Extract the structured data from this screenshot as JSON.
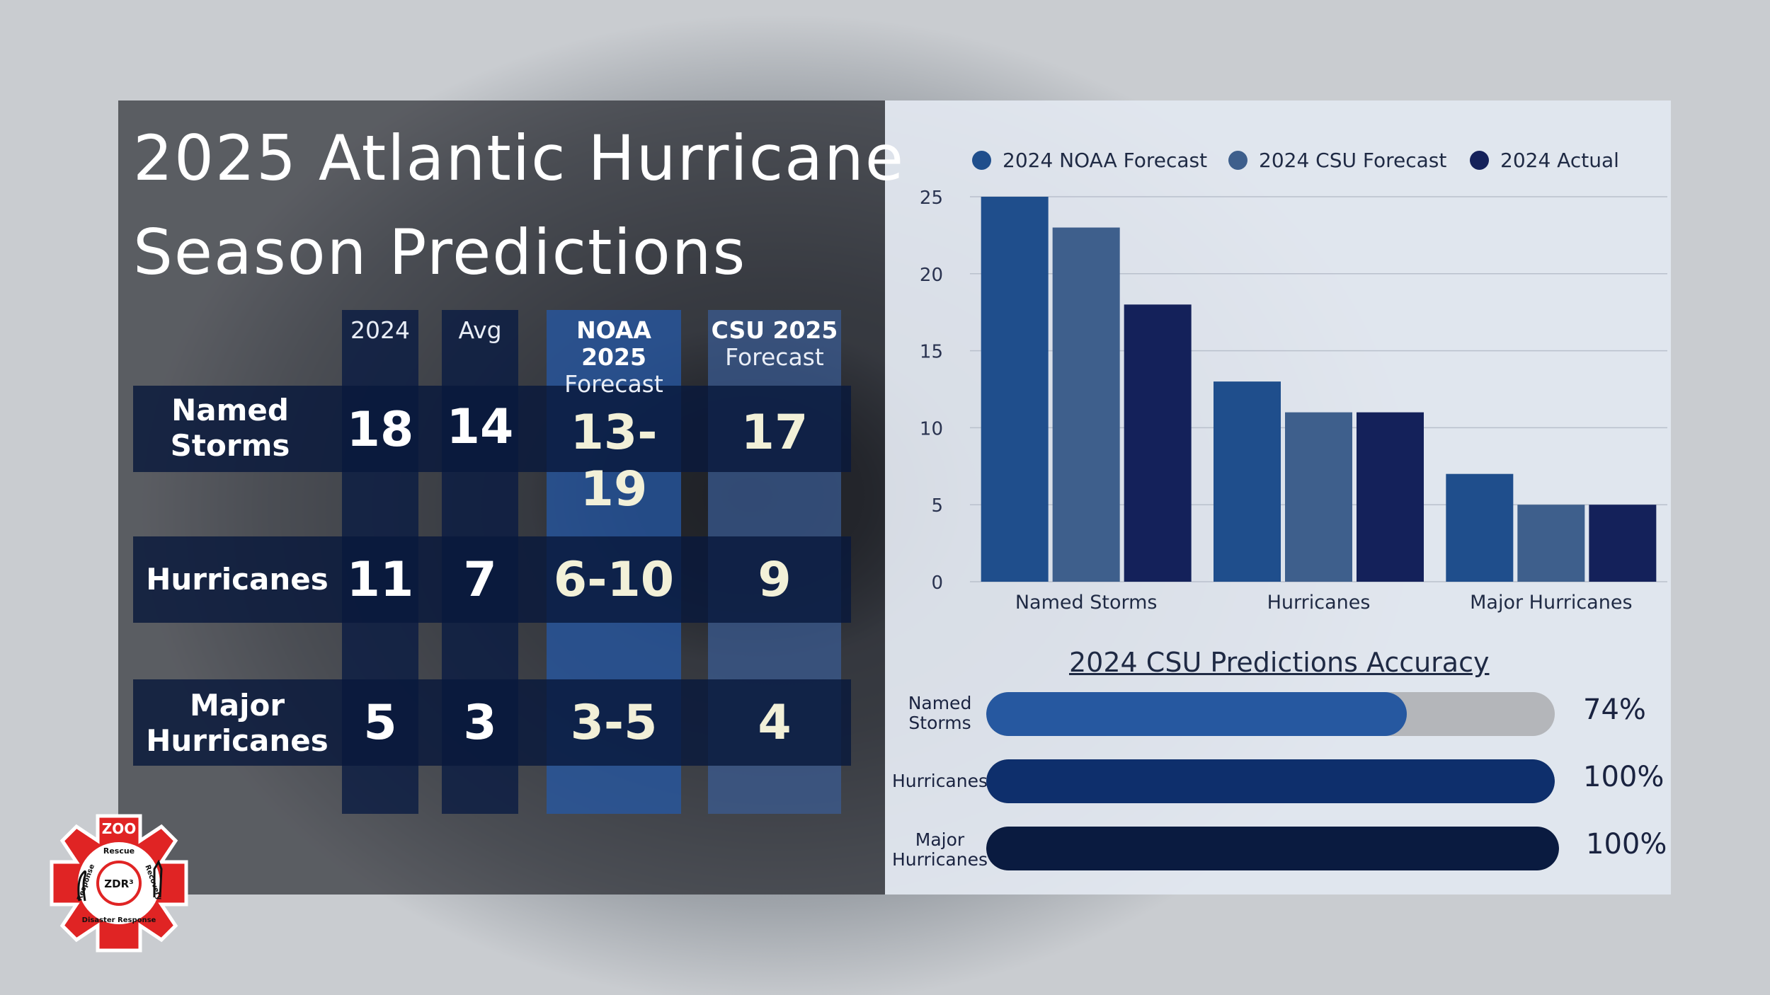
{
  "title": {
    "line1": "2025 Atlantic Hurricane",
    "line2": "Season Predictions"
  },
  "table": {
    "columns": [
      {
        "line1": "2024",
        "line2": ""
      },
      {
        "line1": "Avg",
        "line2": ""
      },
      {
        "line1": "NOAA 2025",
        "line2": "Forecast"
      },
      {
        "line1": "CSU 2025",
        "line2": "Forecast"
      }
    ],
    "rows": [
      {
        "label1": "Named",
        "label2": "Storms",
        "values": [
          "18",
          "14",
          "13-19",
          "17"
        ]
      },
      {
        "label1": "Hurricanes",
        "label2": "",
        "values": [
          "11",
          "7",
          "6-10",
          "9"
        ]
      },
      {
        "label1": "Major",
        "label2": "Hurricanes",
        "values": [
          "5",
          "3",
          "3-5",
          "4"
        ]
      }
    ]
  },
  "colors": {
    "noaa": "#1f4e8c",
    "csu": "#3e5f8c",
    "actual": "#14215a",
    "accuracy_named": "#2658a0",
    "accuracy_hurricanes": "#0e2f6c",
    "accuracy_major": "#0a1b40",
    "value_highlight": "#f2f0d8"
  },
  "chart_data": [
    {
      "type": "bar",
      "title": "",
      "categories": [
        "Named Storms",
        "Hurricanes",
        "Major Hurricanes"
      ],
      "series": [
        {
          "name": "2024 NOAA Forecast",
          "values": [
            25,
            13,
            7
          ]
        },
        {
          "name": "2024 CSU Forecast",
          "values": [
            23,
            11,
            5
          ]
        },
        {
          "name": "2024 Actual",
          "values": [
            18,
            11,
            5
          ]
        }
      ],
      "ylim": [
        0,
        25
      ],
      "yticks": [
        "0",
        "5",
        "10",
        "15",
        "20",
        "25"
      ],
      "grid": true,
      "legend": "top"
    },
    {
      "type": "bar",
      "orientation": "horizontal",
      "title": "2024 CSU Predictions Accuracy",
      "categories": [
        {
          "line1": "Named",
          "line2": "Storms"
        },
        {
          "line1": "Hurricanes",
          "line2": ""
        },
        {
          "line1": "Major",
          "line2": "Hurricanes"
        }
      ],
      "values": [
        74,
        100,
        100
      ],
      "value_labels": [
        "74%",
        "100%",
        "100%"
      ],
      "xlim": [
        0,
        100
      ]
    }
  ],
  "logo": {
    "top": "ZOO",
    "center": "ZDR³",
    "ring_top": "Rescue",
    "ring_left": "Response",
    "ring_right": "Recovery",
    "ring_bottom": "Disaster Response"
  }
}
